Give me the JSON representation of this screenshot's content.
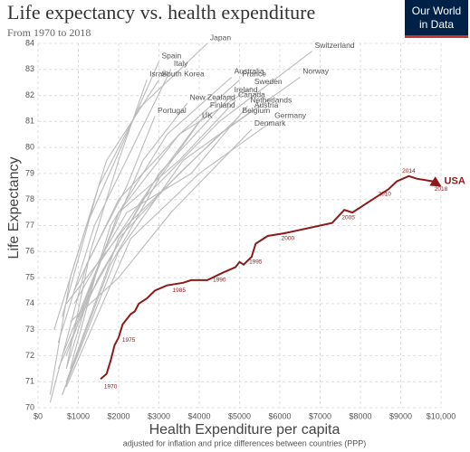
{
  "chart_data": {
    "type": "line",
    "title": "Life expectancy vs. health expenditure",
    "subtitle": "From 1970 to 2018",
    "logo": [
      "Our World",
      "in Data"
    ],
    "x_label": "Health Expenditure per capita",
    "x_sublabel": "adjusted for inflation and price differences between countries (PPP)",
    "y_label": "Life Expectancy",
    "xlim": [
      0,
      10000
    ],
    "ylim": [
      70,
      84
    ],
    "xticks": [
      {
        "value": 0,
        "label": "$0"
      },
      {
        "value": 1000,
        "label": "$1000"
      },
      {
        "value": 2000,
        "label": "$2000"
      },
      {
        "value": 3000,
        "label": "$3000"
      },
      {
        "value": 4000,
        "label": "$4000"
      },
      {
        "value": 5000,
        "label": "$5000"
      },
      {
        "value": 6000,
        "label": "$6000"
      },
      {
        "value": 7000,
        "label": "$7000"
      },
      {
        "value": 8000,
        "label": "$8000"
      },
      {
        "value": 9000,
        "label": "$9000"
      },
      {
        "value": 10000,
        "label": "$10,000"
      }
    ],
    "yticks": [
      70,
      71,
      72,
      73,
      74,
      75,
      76,
      77,
      78,
      79,
      80,
      81,
      82,
      83,
      84
    ],
    "grid": true,
    "series": [
      {
        "name": "Japan",
        "color": "#bbbbbb",
        "x": [
          600,
          1500,
          2500,
          4200
        ],
        "values": [
          73.5,
          78.5,
          81.5,
          84.0
        ]
      },
      {
        "name": "Spain",
        "color": "#bbbbbb",
        "x": [
          400,
          1200,
          2200,
          3000
        ],
        "values": [
          73,
          77,
          80.5,
          83.3
        ]
      },
      {
        "name": "Italy",
        "color": "#bbbbbb",
        "x": [
          500,
          1400,
          2500,
          3300
        ],
        "values": [
          72.5,
          77,
          80.5,
          83.0
        ]
      },
      {
        "name": "Israel",
        "color": "#bbbbbb",
        "x": [
          700,
          1300,
          2000,
          2700
        ],
        "values": [
          71.5,
          76,
          79.5,
          82.6
        ]
      },
      {
        "name": "South Korea",
        "color": "#bbbbbb",
        "x": [
          300,
          800,
          1700,
          3000
        ],
        "values": [
          70.5,
          75,
          79.5,
          82.6
        ]
      },
      {
        "name": "Australia",
        "color": "#bbbbbb",
        "x": [
          700,
          1800,
          3200,
          4800
        ],
        "values": [
          71.5,
          77,
          80.5,
          82.7
        ]
      },
      {
        "name": "France",
        "color": "#bbbbbb",
        "x": [
          700,
          2000,
          3500,
          5000
        ],
        "values": [
          72,
          77.5,
          80.5,
          82.6
        ]
      },
      {
        "name": "Norway",
        "color": "#bbbbbb",
        "x": [
          700,
          2200,
          4500,
          6500
        ],
        "values": [
          74,
          77,
          80.5,
          82.7
        ]
      },
      {
        "name": "Switzerland",
        "color": "#bbbbbb",
        "x": [
          1000,
          2600,
          4500,
          6800
        ],
        "values": [
          73.5,
          78,
          81,
          83.7
        ]
      },
      {
        "name": "Sweden",
        "color": "#bbbbbb",
        "x": [
          900,
          2000,
          3500,
          5300
        ],
        "values": [
          74.5,
          78,
          80.5,
          82.3
        ]
      },
      {
        "name": "Ireland",
        "color": "#bbbbbb",
        "x": [
          500,
          1500,
          3000,
          4800
        ],
        "values": [
          71.5,
          75,
          79,
          82.0
        ]
      },
      {
        "name": "Canada",
        "color": "#bbbbbb",
        "x": [
          900,
          2000,
          3500,
          4900
        ],
        "values": [
          73,
          77.5,
          79.5,
          81.8
        ]
      },
      {
        "name": "Netherlands",
        "color": "#bbbbbb",
        "x": [
          900,
          2200,
          3800,
          5200
        ],
        "values": [
          74,
          77.5,
          79,
          81.6
        ]
      },
      {
        "name": "New Zealand",
        "color": "#bbbbbb",
        "x": [
          800,
          1500,
          2600,
          3700
        ],
        "values": [
          71.5,
          75.5,
          79.5,
          81.7
        ]
      },
      {
        "name": "Finland",
        "color": "#bbbbbb",
        "x": [
          600,
          1800,
          3000,
          4200
        ],
        "values": [
          70.5,
          75.5,
          78.8,
          81.4
        ]
      },
      {
        "name": "Austria",
        "color": "#bbbbbb",
        "x": [
          600,
          2000,
          3600,
          5300
        ],
        "values": [
          70.5,
          76,
          79.5,
          81.4
        ]
      },
      {
        "name": "Portugal",
        "color": "#bbbbbb",
        "x": [
          300,
          1200,
          2200,
          2900
        ],
        "values": [
          70.2,
          75.5,
          78.5,
          81.2
        ]
      },
      {
        "name": "Belgium",
        "color": "#bbbbbb",
        "x": [
          700,
          2000,
          3500,
          5000
        ],
        "values": [
          71,
          76.5,
          79,
          81.2
        ]
      },
      {
        "name": "UK",
        "color": "#bbbbbb",
        "x": [
          600,
          1500,
          2800,
          4000
        ],
        "values": [
          72,
          75.5,
          78.5,
          81.0
        ]
      },
      {
        "name": "Germany",
        "color": "#bbbbbb",
        "x": [
          700,
          2300,
          4000,
          5800
        ],
        "values": [
          70.8,
          76.5,
          79,
          81.0
        ]
      },
      {
        "name": "Denmark",
        "color": "#bbbbbb",
        "x": [
          800,
          2000,
          3300,
          5300
        ],
        "values": [
          73.3,
          75,
          77.5,
          80.7
        ]
      },
      {
        "name": "USA",
        "color": "#8b1a1a",
        "x": [
          1550,
          1700,
          1800,
          1900,
          2000,
          2100,
          2300,
          2400,
          2500,
          2700,
          2900,
          3200,
          3600,
          3800,
          4200,
          4600,
          4900,
          5000,
          5100,
          5300,
          5400,
          5700,
          6100,
          6400,
          7000,
          7300,
          7600,
          7800,
          8300,
          8700,
          8900,
          9200,
          9400,
          9800,
          9900
        ],
        "values": [
          71.1,
          71.3,
          71.8,
          72.4,
          72.7,
          73.2,
          73.6,
          73.7,
          74.0,
          74.2,
          74.5,
          74.7,
          74.8,
          74.9,
          74.9,
          75.2,
          75.4,
          75.6,
          75.5,
          75.8,
          76.3,
          76.6,
          76.7,
          76.8,
          77.0,
          77.1,
          77.6,
          77.5,
          78.0,
          78.4,
          78.7,
          78.9,
          78.8,
          78.7,
          78.6
        ]
      }
    ],
    "annotations": [
      {
        "text": "1970",
        "x": 1800,
        "y": 70.8
      },
      {
        "text": "1975",
        "x": 2250,
        "y": 72.6
      },
      {
        "text": "1985",
        "x": 3500,
        "y": 74.5
      },
      {
        "text": "1990",
        "x": 4500,
        "y": 74.9
      },
      {
        "text": "1995",
        "x": 5400,
        "y": 75.6
      },
      {
        "text": "2000",
        "x": 6200,
        "y": 76.5
      },
      {
        "text": "2005",
        "x": 7700,
        "y": 77.3
      },
      {
        "text": "2010",
        "x": 8600,
        "y": 78.2
      },
      {
        "text": "2014",
        "x": 9200,
        "y": 79.1
      },
      {
        "text": "2018",
        "x": 10000,
        "y": 78.4
      }
    ]
  }
}
